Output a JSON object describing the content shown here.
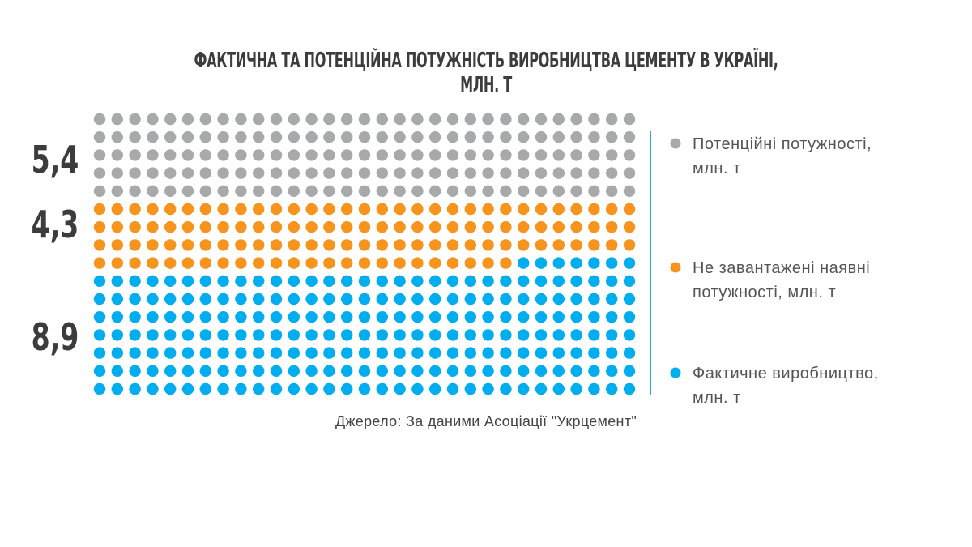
{
  "chart_data": {
    "type": "dot_matrix",
    "title": "ФАКТИЧНА ТА ПОТЕНЦІЙНА ПОТУЖНІСТЬ ВИРОБНИЦТВА ЦЕМЕНТУ В УКРАЇНІ, МЛН. Т",
    "grid": {
      "columns": 31,
      "rows": 16
    },
    "series": [
      {
        "name": "Потенційні потужності, млн. т",
        "value": 5.4,
        "display": "5,4",
        "dots": 155,
        "color": "#a7a9ab"
      },
      {
        "name": "Не завантажені наявні потужності, млн. т",
        "value": 4.3,
        "display": "4,3",
        "dots": 117,
        "color": "#f7941d"
      },
      {
        "name": "Фактичне виробництво, млн. т",
        "value": 8.9,
        "display": "8,9",
        "dots": 224,
        "color": "#00aeef"
      }
    ],
    "legend": [
      {
        "lines": [
          "Потенційні потужності,",
          "млн. т"
        ],
        "color": "#a7a9ab"
      },
      {
        "lines": [
          "Не завантажені наявні",
          "потужності, млн. т"
        ],
        "color": "#f7941d"
      },
      {
        "lines": [
          "Фактичне виробництво,",
          "млн. т"
        ],
        "color": "#00aeef"
      }
    ],
    "divider_color": "#29abe2"
  },
  "source": "Джерело: За даними Асоціації \"Укрцемент\""
}
